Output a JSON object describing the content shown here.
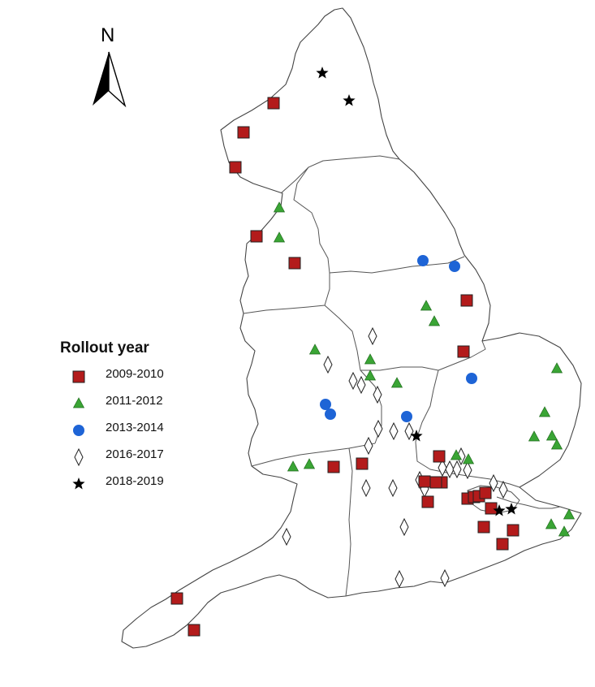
{
  "north": {
    "label": "N"
  },
  "legend": {
    "title": "Rollout year",
    "items": [
      {
        "label": "2009-2010",
        "symbol": "square",
        "color": "#b31b1b"
      },
      {
        "label": "2011-2012",
        "symbol": "triangle",
        "color": "#3aa535"
      },
      {
        "label": "2013-2014",
        "symbol": "circle",
        "color": "#1e64d6"
      },
      {
        "label": "2016-2017",
        "symbol": "diamond",
        "color": "#ffffff"
      },
      {
        "label": "2018-2019",
        "symbol": "star",
        "color": "#000000"
      }
    ]
  },
  "markers": {
    "2009-2010": [
      [
        337,
        127
      ],
      [
        300,
        163
      ],
      [
        290,
        206
      ],
      [
        316,
        291
      ],
      [
        363,
        324
      ],
      [
        575,
        370
      ],
      [
        571,
        433
      ],
      [
        411,
        575
      ],
      [
        446,
        571
      ],
      [
        541,
        562
      ],
      [
        544,
        594
      ],
      [
        537,
        594
      ],
      [
        523,
        593
      ],
      [
        527,
        618
      ],
      [
        576,
        614
      ],
      [
        584,
        612
      ],
      [
        590,
        611
      ],
      [
        598,
        607
      ],
      [
        605,
        626
      ],
      [
        596,
        649
      ],
      [
        632,
        653
      ],
      [
        619,
        670
      ],
      [
        218,
        737
      ],
      [
        239,
        776
      ]
    ],
    "2011-2012": [
      [
        344,
        256
      ],
      [
        344,
        293
      ],
      [
        525,
        377
      ],
      [
        535,
        396
      ],
      [
        388,
        431
      ],
      [
        456,
        443
      ],
      [
        456,
        463
      ],
      [
        489,
        472
      ],
      [
        686,
        454
      ],
      [
        671,
        508
      ],
      [
        658,
        538
      ],
      [
        680,
        537
      ],
      [
        686,
        548
      ],
      [
        361,
        575
      ],
      [
        381,
        572
      ],
      [
        562,
        561
      ],
      [
        577,
        566
      ],
      [
        701,
        634
      ],
      [
        679,
        646
      ],
      [
        695,
        655
      ]
    ],
    "2013-2014": [
      [
        521,
        321
      ],
      [
        560,
        328
      ],
      [
        581,
        466
      ],
      [
        401,
        498
      ],
      [
        407,
        510
      ],
      [
        501,
        513
      ]
    ],
    "2016-2017": [
      [
        459,
        414
      ],
      [
        404,
        449
      ],
      [
        435,
        469
      ],
      [
        445,
        474
      ],
      [
        465,
        486
      ],
      [
        466,
        528
      ],
      [
        485,
        531
      ],
      [
        504,
        531
      ],
      [
        454,
        549
      ],
      [
        568,
        562
      ],
      [
        545,
        576
      ],
      [
        554,
        578
      ],
      [
        563,
        578
      ],
      [
        576,
        579
      ],
      [
        608,
        595
      ],
      [
        620,
        603
      ],
      [
        484,
        601
      ],
      [
        451,
        601
      ],
      [
        517,
        591
      ],
      [
        523,
        602
      ],
      [
        498,
        649
      ],
      [
        353,
        661
      ],
      [
        492,
        713
      ],
      [
        548,
        712
      ]
    ],
    "2018-2019": [
      [
        397,
        90
      ],
      [
        430,
        124
      ],
      [
        513,
        537
      ],
      [
        615,
        629
      ],
      [
        630,
        627
      ]
    ]
  }
}
